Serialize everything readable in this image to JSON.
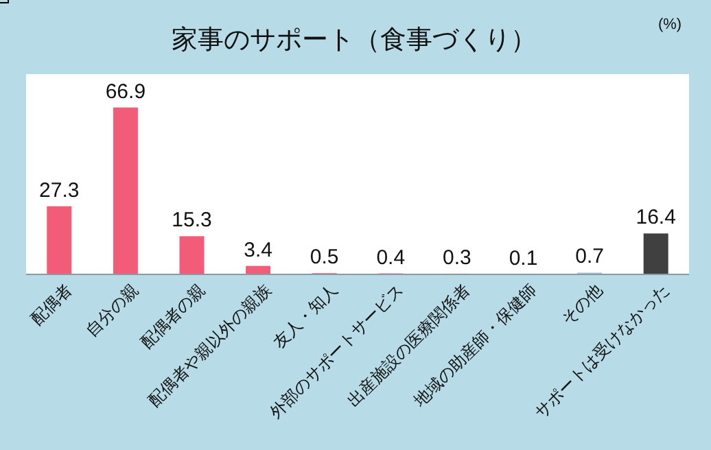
{
  "chart_data": {
    "type": "bar",
    "title": "家事のサポート（食事づくり）",
    "ylabel": "(%)",
    "categories": [
      "配偶者",
      "自分の親",
      "配偶者の親",
      "配偶者や親以外の親族",
      "友人・知人",
      "外部のサポートサービス",
      "出産施設の医療関係者",
      "地域の助産師・保健師",
      "その他",
      "サポートは受けなかった"
    ],
    "values": [
      27.3,
      66.9,
      15.3,
      3.4,
      0.5,
      0.4,
      0.3,
      0.1,
      0.7,
      16.4
    ],
    "colors": [
      "#f25c78",
      "#f25c78",
      "#f25c78",
      "#f25c78",
      "#f25c78",
      "#f25c78",
      "#f25c78",
      "#f25c78",
      "#a9c3d9",
      "#404040"
    ],
    "data_labels": true
  }
}
